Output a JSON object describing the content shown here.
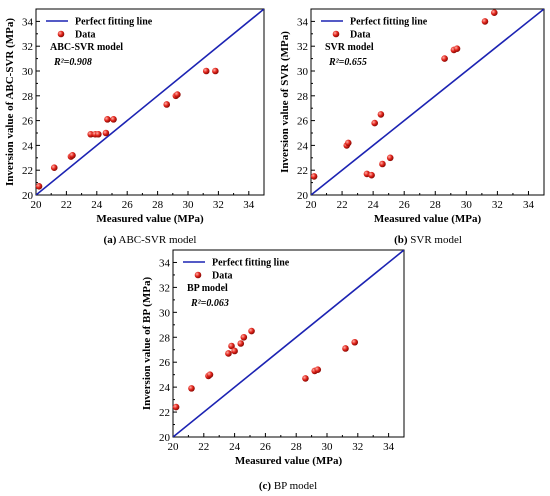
{
  "chart_data": [
    {
      "type": "scatter",
      "caption_letter": "(a)",
      "caption_text": " ABC-SVR model",
      "xlabel": "Measured value (MPa)",
      "ylabel": "Inversion value of ABC-SVR (MPa)",
      "xlim": [
        20,
        35
      ],
      "ylim": [
        20,
        35
      ],
      "xticks": [
        20,
        22,
        24,
        26,
        28,
        30,
        32,
        34
      ],
      "yticks": [
        20,
        22,
        24,
        26,
        28,
        30,
        32,
        34
      ],
      "legend": {
        "line": "Perfect fitting line",
        "points": "Data",
        "placement": "top-left"
      },
      "model_label": "ABC-SVR model",
      "r2_label": "R²=0.908",
      "line_color": "#1c23b3",
      "point_color": "#e2231a",
      "points": [
        [
          20.2,
          20.7
        ],
        [
          21.2,
          22.2
        ],
        [
          22.3,
          23.1
        ],
        [
          22.4,
          23.2
        ],
        [
          23.6,
          24.9
        ],
        [
          23.9,
          24.9
        ],
        [
          24.1,
          24.9
        ],
        [
          24.6,
          25.0
        ],
        [
          24.7,
          26.1
        ],
        [
          25.1,
          26.1
        ],
        [
          28.6,
          27.3
        ],
        [
          29.2,
          28.0
        ],
        [
          29.3,
          28.1
        ],
        [
          31.2,
          30.0
        ],
        [
          31.8,
          30.0
        ]
      ]
    },
    {
      "type": "scatter",
      "caption_letter": "(b)",
      "caption_text": " SVR model",
      "xlabel": "Measured value (MPa)",
      "ylabel": "Inversion value of SVR (MPa)",
      "xlim": [
        20,
        35
      ],
      "ylim": [
        20,
        35
      ],
      "xticks": [
        20,
        22,
        24,
        26,
        28,
        30,
        32,
        34
      ],
      "yticks": [
        20,
        22,
        24,
        26,
        28,
        30,
        32,
        34
      ],
      "legend": {
        "line": "Perfect fitting line",
        "points": "Data",
        "placement": "top-left"
      },
      "model_label": "SVR model",
      "r2_label": "R²=0.655",
      "line_color": "#1c23b3",
      "point_color": "#e2231a",
      "points": [
        [
          20.2,
          21.5
        ],
        [
          22.3,
          24.0
        ],
        [
          22.4,
          24.2
        ],
        [
          23.6,
          21.7
        ],
        [
          23.9,
          21.6
        ],
        [
          24.1,
          25.8
        ],
        [
          24.5,
          26.5
        ],
        [
          24.6,
          22.5
        ],
        [
          25.1,
          23.0
        ],
        [
          28.6,
          31.0
        ],
        [
          29.2,
          31.7
        ],
        [
          29.4,
          31.8
        ],
        [
          31.2,
          34.0
        ],
        [
          31.8,
          34.7
        ]
      ]
    },
    {
      "type": "scatter",
      "caption_letter": "(c)",
      "caption_text": " BP model",
      "xlabel": "Measured value (MPa)",
      "ylabel": "Inversion value of BP (MPa)",
      "xlim": [
        20,
        35
      ],
      "ylim": [
        20,
        35
      ],
      "xticks": [
        20,
        22,
        24,
        26,
        28,
        30,
        32,
        34
      ],
      "yticks": [
        20,
        22,
        24,
        26,
        28,
        30,
        32,
        34
      ],
      "legend": {
        "line": "Perfect fitting line",
        "points": "Data",
        "placement": "top-left"
      },
      "model_label": "BP model",
      "r2_label": "R²=0.063",
      "line_color": "#1c23b3",
      "point_color": "#e2231a",
      "points": [
        [
          20.2,
          22.4
        ],
        [
          21.2,
          23.9
        ],
        [
          22.3,
          24.9
        ],
        [
          22.4,
          25.0
        ],
        [
          23.6,
          26.7
        ],
        [
          23.8,
          27.3
        ],
        [
          24.0,
          26.9
        ],
        [
          24.4,
          27.5
        ],
        [
          24.6,
          28.0
        ],
        [
          25.1,
          28.5
        ],
        [
          28.6,
          24.7
        ],
        [
          29.2,
          25.3
        ],
        [
          29.4,
          25.4
        ],
        [
          31.2,
          27.1
        ],
        [
          31.8,
          27.6
        ]
      ]
    }
  ]
}
